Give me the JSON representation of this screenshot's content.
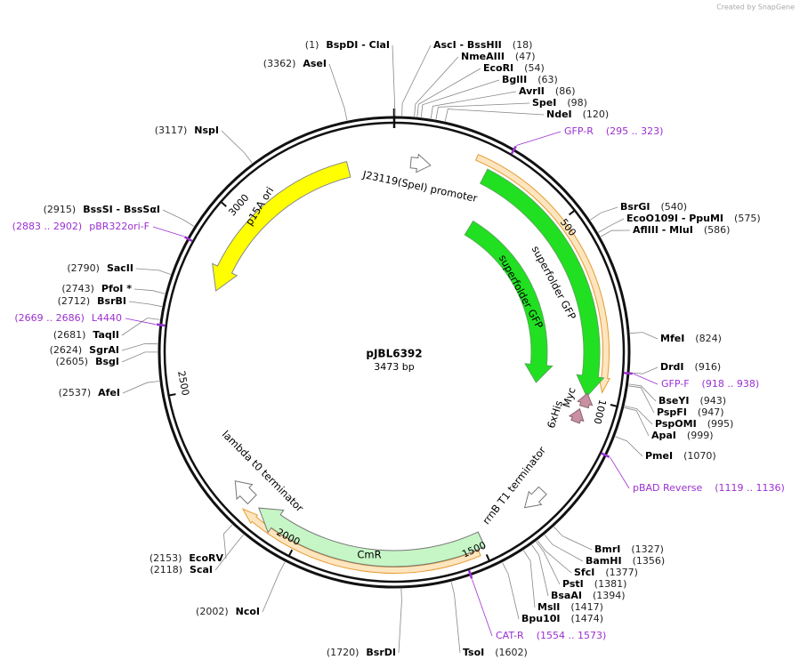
{
  "header": {
    "credit": "Created by SnapGene"
  },
  "map": {
    "name": "pJBL6392",
    "length": "3473 bp",
    "ticks": [
      500,
      1000,
      1500,
      2000,
      2500,
      3000
    ]
  },
  "enzymes": [
    {
      "site": "(1)",
      "names": "BspDI - ClaI"
    },
    {
      "site": "(18)",
      "names": "AscI - BssHII"
    },
    {
      "site": "(47)",
      "names": "NmeAIII"
    },
    {
      "site": "(54)",
      "names": "EcoRI"
    },
    {
      "site": "(63)",
      "names": "BglII"
    },
    {
      "site": "(86)",
      "names": "AvrII"
    },
    {
      "site": "(98)",
      "names": "SpeI"
    },
    {
      "site": "(120)",
      "names": "NdeI"
    },
    {
      "site": "(540)",
      "names": "BsrGI"
    },
    {
      "site": "(575)",
      "names": "EcoO109I - PpuMI"
    },
    {
      "site": "(586)",
      "names": "AflIII - MluI"
    },
    {
      "site": "(824)",
      "names": "MfeI"
    },
    {
      "site": "(916)",
      "names": "DrdI"
    },
    {
      "site": "(943)",
      "names": "BseYI"
    },
    {
      "site": "(947)",
      "names": "PspFI"
    },
    {
      "site": "(995)",
      "names": "PspOMI"
    },
    {
      "site": "(999)",
      "names": "ApaI"
    },
    {
      "site": "(1070)",
      "names": "PmeI"
    },
    {
      "site": "(1327)",
      "names": "BmrI"
    },
    {
      "site": "(1356)",
      "names": "BamHI"
    },
    {
      "site": "(1377)",
      "names": "SfcI"
    },
    {
      "site": "(1381)",
      "names": "PstI"
    },
    {
      "site": "(1394)",
      "names": "BsaAI"
    },
    {
      "site": "(1417)",
      "names": "MslI"
    },
    {
      "site": "(1474)",
      "names": "Bpu10I"
    },
    {
      "site": "(1602)",
      "names": "TsoI"
    },
    {
      "site": "(1720)",
      "names": "BsrDI"
    },
    {
      "site": "(2002)",
      "names": "NcoI"
    },
    {
      "site": "(2118)",
      "names": "ScaI"
    },
    {
      "site": "(2153)",
      "names": "EcoRV"
    },
    {
      "site": "(2537)",
      "names": "AfeI"
    },
    {
      "site": "(2605)",
      "names": "BsgI"
    },
    {
      "site": "(2624)",
      "names": "SgrAI"
    },
    {
      "site": "(2681)",
      "names": "TaqII"
    },
    {
      "site": "(2712)",
      "names": "BsrBI"
    },
    {
      "site": "(2743)",
      "names": "PfoI *"
    },
    {
      "site": "(2790)",
      "names": "SacII"
    },
    {
      "site": "(2915)",
      "names": "BssSI - BssSαI"
    },
    {
      "site": "(3117)",
      "names": "NspI"
    },
    {
      "site": "(3362)",
      "names": "AseI"
    }
  ],
  "primers": [
    {
      "name": "GFP-R",
      "range": "(295 .. 323)"
    },
    {
      "name": "GFP-F",
      "range": "(918 .. 938)"
    },
    {
      "name": "pBAD Reverse",
      "range": "(1119 .. 1136)"
    },
    {
      "name": "CAT-R",
      "range": "(1554 .. 1573)"
    },
    {
      "name": "pBR322ori-F",
      "range": "(2883 .. 2902)"
    },
    {
      "name": "L4440",
      "range": "(2669 .. 2686)"
    }
  ],
  "features": [
    {
      "label": "p15A ori"
    },
    {
      "label": "J23119(SpeI) promoter"
    },
    {
      "label": "superfolder GFP"
    },
    {
      "label": "superfolder GFP"
    },
    {
      "label": "6xHis"
    },
    {
      "label": "Myc"
    },
    {
      "label": "rrnB T1 terminator"
    },
    {
      "label": "lambda t0 terminator"
    },
    {
      "label": "CmR"
    }
  ]
}
